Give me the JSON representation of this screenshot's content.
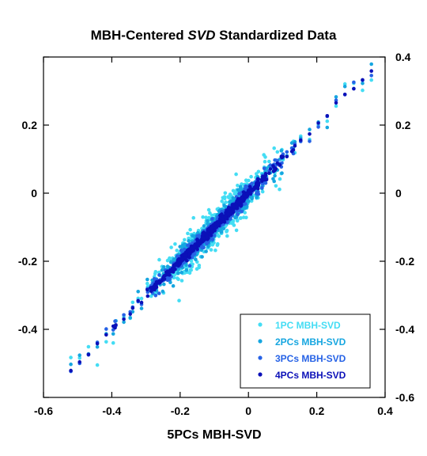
{
  "chart_data": {
    "type": "scatter",
    "title_prefix": "MBH-Centered ",
    "title_italic": "SVD",
    "title_suffix": " Standardized Data",
    "xlabel": "5PCs MBH-SVD",
    "ylabel": "",
    "xlim": [
      -0.6,
      0.4
    ],
    "ylim": [
      -0.6,
      0.4
    ],
    "x_ticks": [
      "-0.6",
      "-0.4",
      "-0.2",
      "0",
      "0.2",
      "0.4"
    ],
    "y_ticks_left": [
      "",
      "-0.4",
      "-0.2",
      "0",
      "0.2",
      ""
    ],
    "y_ticks_right": [
      "-0.6",
      "-0.4",
      "-0.2",
      "0",
      "0.2",
      "0.4"
    ],
    "grid": false,
    "legend_position": "bottom-right",
    "series": [
      {
        "name": "1PC MBH-SVD",
        "color": "#44ddf4",
        "spread": 0.028
      },
      {
        "name": "2PCs MBH-SVD",
        "color": "#16a6e0",
        "spread": 0.018
      },
      {
        "name": "3PCs MBH-SVD",
        "color": "#2662e6",
        "spread": 0.011
      },
      {
        "name": "4PCs MBH-SVD",
        "color": "#0b10b8",
        "spread": 0.006
      }
    ],
    "x_range": [
      -0.52,
      0.36
    ]
  }
}
